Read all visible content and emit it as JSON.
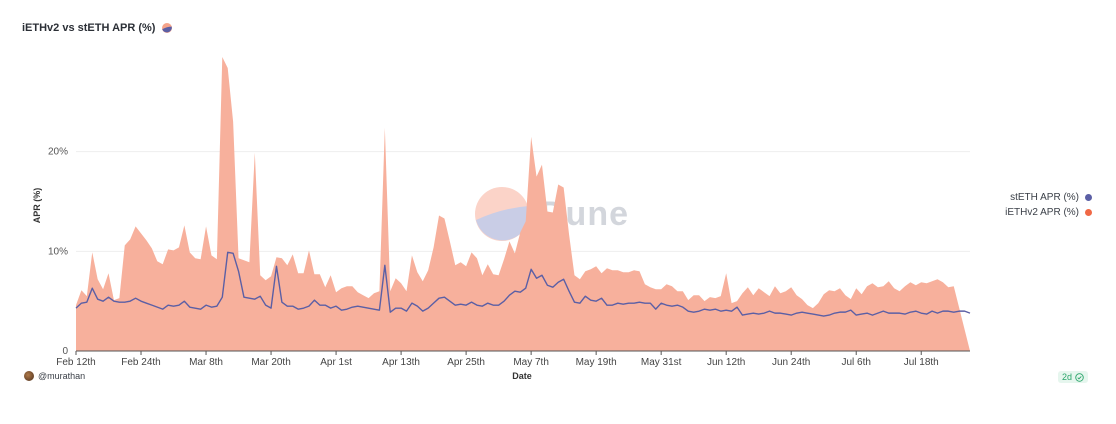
{
  "header": {
    "title": "iETHv2 vs stETH APR (%)",
    "logo_icon": "dune-logo-icon"
  },
  "watermark": {
    "text": "Dune"
  },
  "author": {
    "handle": "@murathan",
    "icon": "avatar-icon"
  },
  "freshness": {
    "label": "2d",
    "icon": "check-circle-icon"
  },
  "colors": {
    "ieth_fill": "#f7b09c",
    "ieth_dot": "#f06846",
    "steth_line": "#5b5fa5",
    "grid": "#eeeeee"
  },
  "chart_data": {
    "type": "area",
    "title": "iETHv2 vs stETH APR (%)",
    "xlabel": "Date",
    "ylabel": "APR (%)",
    "ylim": [
      0,
      30
    ],
    "y_ticks": [
      0,
      10,
      20
    ],
    "y_tick_labels": [
      "0",
      "10%",
      "20%"
    ],
    "x_tick_labels": [
      "Feb 12th",
      "Feb 24th",
      "Mar 8th",
      "Mar 20th",
      "Apr 1st",
      "Apr 13th",
      "Apr 25th",
      "May 7th",
      "May 19th",
      "May 31st",
      "Jun 12th",
      "Jun 24th",
      "Jul 6th",
      "Jul 18th"
    ],
    "x_tick_days": [
      0,
      12,
      24,
      36,
      48,
      60,
      72,
      84,
      96,
      108,
      120,
      132,
      144,
      156
    ],
    "grid": true,
    "legend_position": "right",
    "series": [
      {
        "name": "stETH APR (%)",
        "kind": "line",
        "values": [
          4.3,
          4.8,
          4.9,
          6.3,
          5.2,
          5.0,
          5.4,
          5.0,
          4.9,
          4.9,
          5.0,
          5.3,
          5.0,
          4.8,
          4.6,
          4.4,
          4.2,
          4.6,
          4.5,
          4.6,
          5.0,
          4.4,
          4.3,
          4.2,
          4.6,
          4.4,
          4.5,
          5.4,
          9.9,
          9.8,
          8.0,
          5.4,
          5.3,
          5.2,
          5.5,
          4.6,
          4.3,
          8.5,
          4.9,
          4.5,
          4.5,
          4.2,
          4.3,
          4.5,
          5.1,
          4.6,
          4.6,
          4.3,
          4.5,
          4.1,
          4.2,
          4.4,
          4.5,
          4.4,
          4.3,
          4.2,
          4.1,
          8.6,
          3.9,
          4.3,
          4.3,
          4.0,
          4.8,
          4.5,
          4.0,
          4.3,
          4.8,
          5.3,
          5.4,
          5.0,
          4.6,
          4.7,
          4.6,
          4.9,
          4.6,
          4.5,
          4.8,
          4.6,
          4.6,
          5.0,
          5.6,
          6.0,
          5.9,
          6.3,
          8.2,
          7.3,
          7.6,
          6.6,
          6.4,
          6.9,
          7.2,
          6.0,
          4.9,
          4.8,
          5.5,
          5.1,
          5.0,
          5.3,
          4.6,
          4.6,
          4.8,
          4.7,
          4.8,
          4.8,
          4.9,
          4.8,
          4.8,
          4.2,
          4.8,
          4.6,
          4.5,
          4.6,
          4.4,
          4.0,
          3.9,
          4.0,
          4.2,
          4.1,
          4.2,
          4.0,
          4.1,
          4.0,
          4.4,
          3.6,
          3.7,
          3.8,
          3.7,
          3.8,
          4.0,
          3.8,
          3.8,
          3.7,
          3.6,
          3.8,
          3.9,
          3.8,
          3.7,
          3.6,
          3.5,
          3.6,
          3.8,
          3.9,
          3.9,
          4.1,
          3.6,
          3.7,
          3.8,
          3.6,
          3.8,
          4.0,
          3.8,
          3.8,
          3.8,
          3.7,
          3.9,
          4.0,
          3.8,
          3.7,
          4.0,
          3.8,
          4.0,
          4.0,
          3.9,
          4.0,
          4.0,
          3.8
        ]
      },
      {
        "name": "iETHv2 APR (%)",
        "kind": "area",
        "values": [
          4.6,
          6.1,
          5.5,
          9.9,
          7.2,
          6.2,
          7.8,
          5.1,
          5.3,
          10.6,
          11.2,
          12.5,
          11.8,
          11.1,
          10.3,
          9.0,
          8.7,
          10.2,
          10.1,
          10.4,
          12.6,
          9.9,
          9.3,
          9.2,
          12.5,
          9.6,
          9.2,
          29.5,
          28.4,
          23.0,
          9.3,
          9.1,
          8.9,
          19.9,
          7.6,
          7.1,
          7.5,
          9.4,
          9.3,
          8.6,
          9.7,
          7.8,
          7.8,
          10.1,
          7.7,
          7.7,
          6.4,
          7.6,
          5.9,
          6.3,
          6.5,
          6.5,
          5.9,
          5.6,
          5.3,
          5.8,
          6.0,
          22.4,
          6.0,
          7.3,
          6.8,
          6.0,
          9.6,
          7.9,
          7.0,
          8.1,
          10.4,
          13.6,
          13.3,
          11.0,
          8.6,
          8.9,
          8.5,
          9.9,
          9.3,
          7.6,
          8.7,
          7.7,
          7.6,
          9.2,
          11.0,
          9.8,
          11.9,
          13.0,
          21.5,
          17.5,
          18.7,
          14.0,
          13.9,
          16.7,
          16.4,
          11.7,
          7.6,
          7.2,
          8.0,
          8.2,
          8.5,
          7.8,
          8.3,
          8.1,
          8.1,
          7.9,
          7.9,
          8.1,
          8.0,
          6.7,
          6.4,
          6.2,
          6.2,
          6.7,
          6.5,
          6.0,
          6.0,
          5.1,
          5.6,
          5.6,
          5.0,
          5.4,
          5.3,
          5.5,
          7.8,
          4.8,
          5.0,
          5.8,
          6.4,
          5.6,
          6.3,
          5.9,
          5.5,
          6.5,
          5.8,
          6.0,
          6.4,
          5.6,
          5.2,
          4.6,
          4.3,
          4.8,
          5.7,
          6.1,
          6.0,
          6.3,
          5.6,
          5.2,
          6.3,
          5.7,
          6.5,
          6.8,
          6.4,
          6.5,
          7.0,
          6.3,
          6.0,
          6.5,
          6.9,
          6.6,
          6.9,
          6.8,
          7.0,
          7.2,
          6.9,
          6.4,
          6.5
        ]
      }
    ]
  }
}
